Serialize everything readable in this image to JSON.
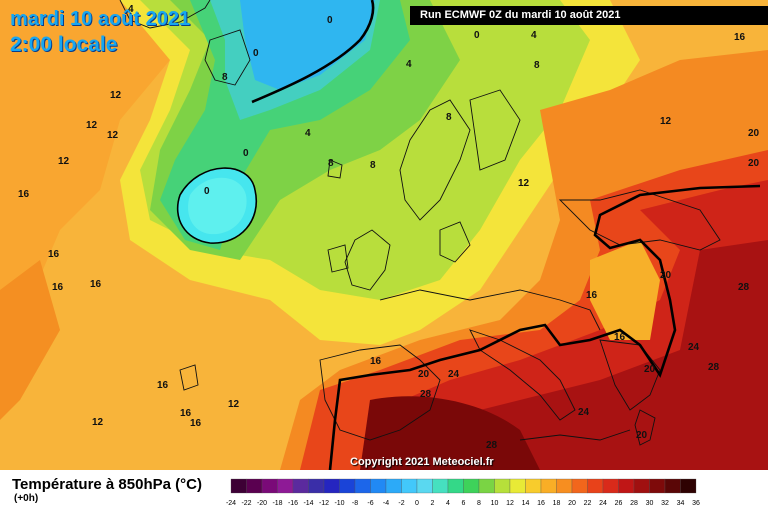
{
  "header": {
    "date": "mardi 10 août 2021",
    "local_time": "2:00 locale",
    "run": "Run ECMWF 0Z du mardi 10 août 2021"
  },
  "copyright": "Copyright 2021 Meteociel.fr",
  "legend": {
    "title": "Température à 850hPa (°C)",
    "subtitle": "(+0h)",
    "ticks": [
      "-24",
      "-22",
      "-20",
      "-18",
      "-16",
      "-14",
      "-12",
      "-10",
      "-8",
      "-6",
      "-4",
      "-2",
      "0",
      "2",
      "4",
      "6",
      "8",
      "10",
      "12",
      "14",
      "16",
      "18",
      "20",
      "22",
      "24",
      "26",
      "28",
      "30",
      "32",
      "34",
      "36"
    ],
    "colors": [
      "#3d0035",
      "#5a0050",
      "#7a0a78",
      "#8e1a96",
      "#5b2a9e",
      "#3a2ea8",
      "#2525c0",
      "#1a44d8",
      "#1c66ea",
      "#2189f4",
      "#2caaf8",
      "#42c8fb",
      "#5ad8f0",
      "#46e0c0",
      "#34d888",
      "#3ed25a",
      "#7ad444",
      "#b6e03a",
      "#e8ea36",
      "#f8cc2c",
      "#f9ae26",
      "#f78e20",
      "#f2661c",
      "#e8421a",
      "#d92a1a",
      "#c01616",
      "#a01010",
      "#7e0a0a",
      "#5a0606",
      "#2e0202"
    ]
  },
  "contour_labels": [
    {
      "id": "0a",
      "text": "0"
    },
    {
      "id": "0b",
      "text": "0"
    },
    {
      "id": "0c",
      "text": "0"
    },
    {
      "id": "0d",
      "text": "0"
    },
    {
      "id": "0e",
      "text": "0"
    },
    {
      "id": "4a",
      "text": "4"
    },
    {
      "id": "4b",
      "text": "4"
    },
    {
      "id": "4c",
      "text": "4"
    },
    {
      "id": "4d",
      "text": "4"
    },
    {
      "id": "8a",
      "text": "8"
    },
    {
      "id": "8b",
      "text": "8"
    },
    {
      "id": "8c",
      "text": "8"
    },
    {
      "id": "8d",
      "text": "8"
    },
    {
      "id": "8e",
      "text": "8"
    },
    {
      "id": "12a",
      "text": "12"
    },
    {
      "id": "12b",
      "text": "12"
    },
    {
      "id": "12c",
      "text": "12"
    },
    {
      "id": "12d",
      "text": "12"
    },
    {
      "id": "12e",
      "text": "12"
    },
    {
      "id": "12f",
      "text": "12"
    },
    {
      "id": "12g",
      "text": "12"
    },
    {
      "id": "12h",
      "text": "12"
    },
    {
      "id": "16a",
      "text": "16"
    },
    {
      "id": "16b",
      "text": "16"
    },
    {
      "id": "16c",
      "text": "16"
    },
    {
      "id": "16d",
      "text": "16"
    },
    {
      "id": "16e",
      "text": "16"
    },
    {
      "id": "16f",
      "text": "16"
    },
    {
      "id": "16g",
      "text": "16"
    },
    {
      "id": "16h",
      "text": "16"
    },
    {
      "id": "16i",
      "text": "16"
    },
    {
      "id": "16j",
      "text": "16"
    },
    {
      "id": "16k",
      "text": "16"
    },
    {
      "id": "20a",
      "text": "20"
    },
    {
      "id": "20b",
      "text": "20"
    },
    {
      "id": "20c",
      "text": "20"
    },
    {
      "id": "20d",
      "text": "20"
    },
    {
      "id": "20e",
      "text": "20"
    },
    {
      "id": "20f",
      "text": "20"
    },
    {
      "id": "24a",
      "text": "24"
    },
    {
      "id": "24b",
      "text": "24"
    },
    {
      "id": "24c",
      "text": "24"
    },
    {
      "id": "28a",
      "text": "28"
    },
    {
      "id": "28b",
      "text": "28"
    },
    {
      "id": "28c",
      "text": "28"
    },
    {
      "id": "28d",
      "text": "28"
    }
  ]
}
